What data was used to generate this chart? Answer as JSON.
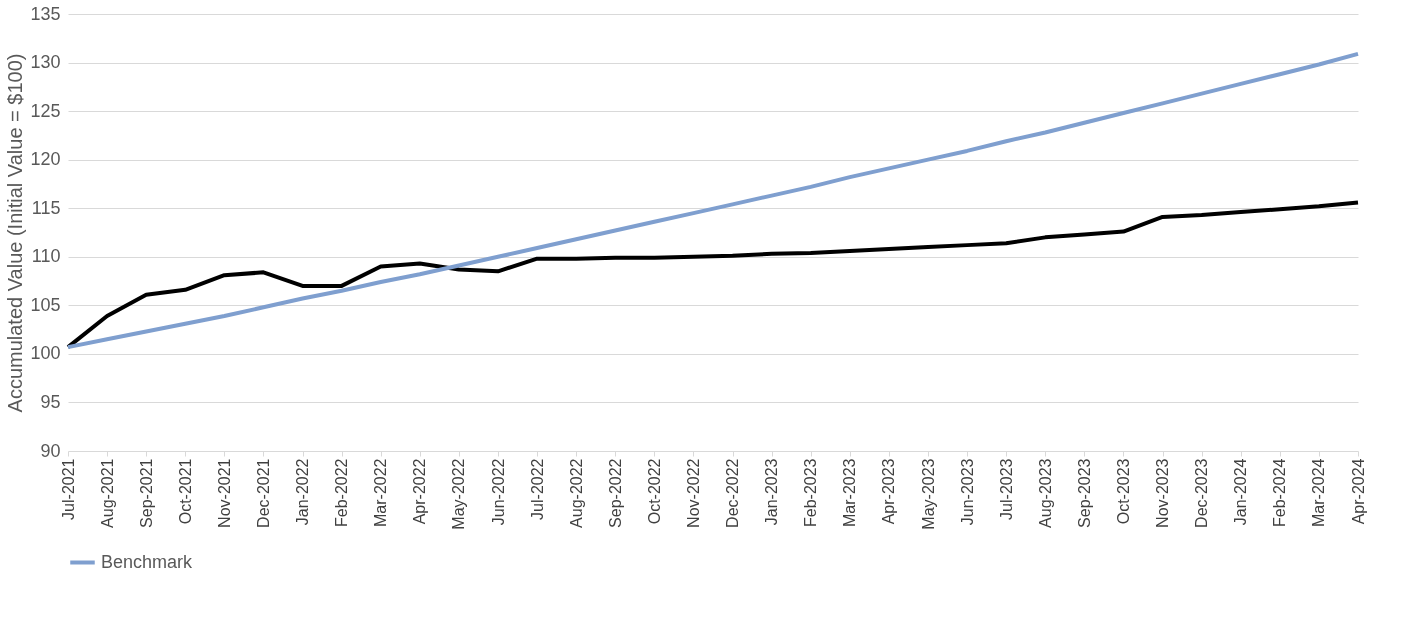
{
  "chart_data": {
    "type": "line",
    "ylabel": "Accumulated Value (Initial Value = $100)",
    "categories": [
      "Jul-2021",
      "Aug-2021",
      "Sep-2021",
      "Oct-2021",
      "Nov-2021",
      "Dec-2021",
      "Jan-2022",
      "Feb-2022",
      "Mar-2022",
      "Apr-2022",
      "May-2022",
      "Jun-2022",
      "Jul-2022",
      "Aug-2022",
      "Sep-2022",
      "Oct-2022",
      "Nov-2022",
      "Dec-2022",
      "Jan-2023",
      "Feb-2023",
      "Mar-2023",
      "Apr-2023",
      "May-2023",
      "Jun-2023",
      "Jul-2023",
      "Aug-2023",
      "Sep-2023",
      "Oct-2023",
      "Nov-2023",
      "Dec-2023",
      "Jan-2024",
      "Feb-2024",
      "Mar-2024",
      "Apr-2024"
    ],
    "series": [
      {
        "color": "#000000",
        "values": [
          100.7,
          103.9,
          106.1,
          106.6,
          108.1,
          108.4,
          107.0,
          107.0,
          109.0,
          109.3,
          108.7,
          108.5,
          109.8,
          109.8,
          109.9,
          109.9,
          110.0,
          110.1,
          110.3,
          110.4,
          110.6,
          110.8,
          111.0,
          111.2,
          111.4,
          112.0,
          112.3,
          112.6,
          114.1,
          114.3,
          114.6,
          114.9,
          115.2,
          115.6
        ]
      },
      {
        "name": "Benchmark",
        "color": "#7f9fcf",
        "values": [
          100.7,
          101.5,
          102.3,
          103.1,
          103.9,
          104.8,
          105.7,
          106.5,
          107.4,
          108.2,
          109.1,
          110.0,
          110.9,
          111.8,
          112.7,
          113.6,
          114.5,
          115.4,
          116.3,
          117.2,
          118.2,
          119.1,
          120.0,
          120.9,
          121.9,
          122.8,
          123.8,
          124.8,
          125.8,
          126.8,
          127.8,
          128.8,
          129.8,
          130.9
        ]
      }
    ],
    "ylim": [
      90,
      135
    ],
    "yticks": [
      90,
      95,
      100,
      105,
      110,
      115,
      120,
      125,
      130,
      135
    ],
    "grid": "y",
    "legend": "bottom",
    "marker": "none",
    "line_style": "solid"
  }
}
